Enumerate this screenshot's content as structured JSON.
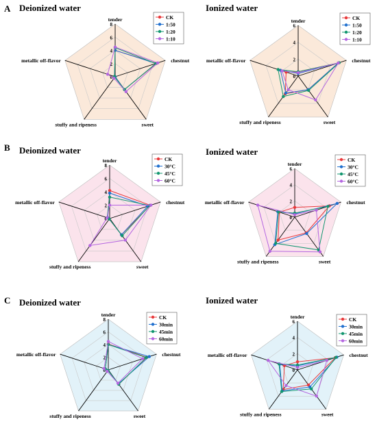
{
  "figure": {
    "panel_letters": [
      "A",
      "B",
      "C"
    ],
    "axis_names": [
      "tender",
      "chestnut",
      "sweet",
      "stuffy and ripeness",
      "metallic off-flavor"
    ]
  },
  "chart_data": [
    {
      "type": "radar",
      "panel": "A",
      "title": "Deionized water",
      "axes": [
        "tender",
        "chestnut",
        "sweet",
        "stuffy and ripeness",
        "metallic off-flavor"
      ],
      "range": [
        0,
        8
      ],
      "ticks": [
        0,
        2,
        4,
        6,
        8
      ],
      "background": "#fbe9da",
      "legend_position": "top-right",
      "series": [
        {
          "name": "CK",
          "color": "#e8383a",
          "values": [
            4.0,
            6.6,
            2.4,
            0.0,
            0.1
          ]
        },
        {
          "name": "1:50",
          "color": "#1f6fce",
          "values": [
            4.0,
            6.5,
            2.4,
            0.0,
            0.1
          ]
        },
        {
          "name": "1:20",
          "color": "#12966f",
          "values": [
            4.4,
            6.5,
            2.4,
            0.1,
            0.1
          ]
        },
        {
          "name": "1:10",
          "color": "#b466e0",
          "values": [
            4.5,
            6.8,
            2.8,
            0.3,
            1.2
          ]
        }
      ]
    },
    {
      "type": "radar",
      "panel": "A",
      "title": "Ionized water",
      "axes": [
        "tender",
        "chestnut",
        "sweet",
        "stuffy and ripeness",
        "metallic off-flavor"
      ],
      "range": [
        0,
        6
      ],
      "ticks": [
        0,
        2,
        4,
        6
      ],
      "background": "#fbe9da",
      "legend_position": "top-right",
      "series": [
        {
          "name": "CK",
          "color": "#e8383a",
          "values": [
            0.5,
            5.0,
            2.0,
            2.6,
            1.5
          ]
        },
        {
          "name": "1:50",
          "color": "#1f6fce",
          "values": [
            0.3,
            5.0,
            2.0,
            2.5,
            2.2
          ]
        },
        {
          "name": "1:20",
          "color": "#12966f",
          "values": [
            0.5,
            5.1,
            2.1,
            3.0,
            2.5
          ]
        },
        {
          "name": "1:10",
          "color": "#b466e0",
          "values": [
            0.4,
            5.0,
            3.5,
            2.0,
            2.0
          ]
        }
      ]
    },
    {
      "type": "radar",
      "panel": "B",
      "title": "Deionized water",
      "axes": [
        "tender",
        "chestnut",
        "sweet",
        "stuffy and ripeness",
        "metallic off-flavor"
      ],
      "range": [
        0,
        8
      ],
      "ticks": [
        0,
        2,
        4,
        6,
        8
      ],
      "background": "#fbe3ec",
      "legend_position": "top-right",
      "series": [
        {
          "name": "CK",
          "color": "#e8383a",
          "values": [
            4.2,
            6.4,
            3.0,
            0.1,
            0.3
          ]
        },
        {
          "name": "30°C",
          "color": "#1f6fce",
          "values": [
            3.8,
            6.0,
            3.0,
            0.1,
            0.3
          ]
        },
        {
          "name": "45°C",
          "color": "#12966f",
          "values": [
            3.2,
            6.3,
            3.2,
            0.1,
            0.4
          ]
        },
        {
          "name": "60°C",
          "color": "#b466e0",
          "values": [
            2.0,
            6.5,
            4.0,
            5.0,
            0.4
          ]
        }
      ]
    },
    {
      "type": "radar",
      "panel": "B",
      "title": "Ionized water",
      "axes": [
        "tender",
        "chestnut",
        "sweet",
        "stuffy and ripeness",
        "metallic off-flavor"
      ],
      "range": [
        0,
        6
      ],
      "ticks": [
        0,
        2,
        4,
        6
      ],
      "background": "#fbe3ec",
      "legend_position": "top-right",
      "series": [
        {
          "name": "CK",
          "color": "#e8383a",
          "values": [
            1.2,
            4.5,
            2.4,
            3.5,
            2.0
          ]
        },
        {
          "name": "30°C",
          "color": "#1f6fce",
          "values": [
            0.4,
            5.5,
            2.5,
            4.2,
            2.2
          ]
        },
        {
          "name": "45°C",
          "color": "#12966f",
          "values": [
            0.5,
            4.3,
            5.0,
            4.0,
            2.1
          ]
        },
        {
          "name": "60°C",
          "color": "#b466e0",
          "values": [
            0.3,
            2.8,
            5.3,
            5.2,
            4.8
          ]
        }
      ]
    },
    {
      "type": "radar",
      "panel": "C",
      "title": "Deionized water",
      "axes": [
        "tender",
        "chestnut",
        "sweet",
        "stuffy and ripeness",
        "metallic off-flavor"
      ],
      "range": [
        0,
        8
      ],
      "ticks": [
        0,
        2,
        4,
        6,
        8
      ],
      "background": "#e2f2f9",
      "legend_position": "top-right",
      "series": [
        {
          "name": "CK",
          "color": "#e8383a",
          "values": [
            4.1,
            6.4,
            2.8,
            0.1,
            0.5
          ]
        },
        {
          "name": "30min",
          "color": "#1f6fce",
          "values": [
            4.0,
            6.8,
            2.7,
            0.1,
            0.5
          ]
        },
        {
          "name": "45min",
          "color": "#12966f",
          "values": [
            4.0,
            6.3,
            2.8,
            0.1,
            0.5
          ]
        },
        {
          "name": "60min",
          "color": "#b466e0",
          "values": [
            4.5,
            5.7,
            2.6,
            0.3,
            0.7
          ]
        }
      ]
    },
    {
      "type": "radar",
      "panel": "C",
      "title": "Ionized water",
      "axes": [
        "tender",
        "chestnut",
        "sweet",
        "stuffy and ripeness",
        "metallic off-flavor"
      ],
      "range": [
        0,
        6
      ],
      "ticks": [
        0,
        2,
        4,
        6
      ],
      "background": "#e2f2f9",
      "legend_position": "top-right",
      "series": [
        {
          "name": "CK",
          "color": "#e8383a",
          "values": [
            1.0,
            4.9,
            2.3,
            3.0,
            1.7
          ]
        },
        {
          "name": "30min",
          "color": "#1f6fce",
          "values": [
            0.5,
            5.1,
            2.6,
            3.2,
            2.3
          ]
        },
        {
          "name": "45min",
          "color": "#12966f",
          "values": [
            0.6,
            5.0,
            2.9,
            3.3,
            2.4
          ]
        },
        {
          "name": "60min",
          "color": "#b466e0",
          "values": [
            0.3,
            3.8,
            4.0,
            2.4,
            3.8
          ]
        }
      ]
    }
  ]
}
